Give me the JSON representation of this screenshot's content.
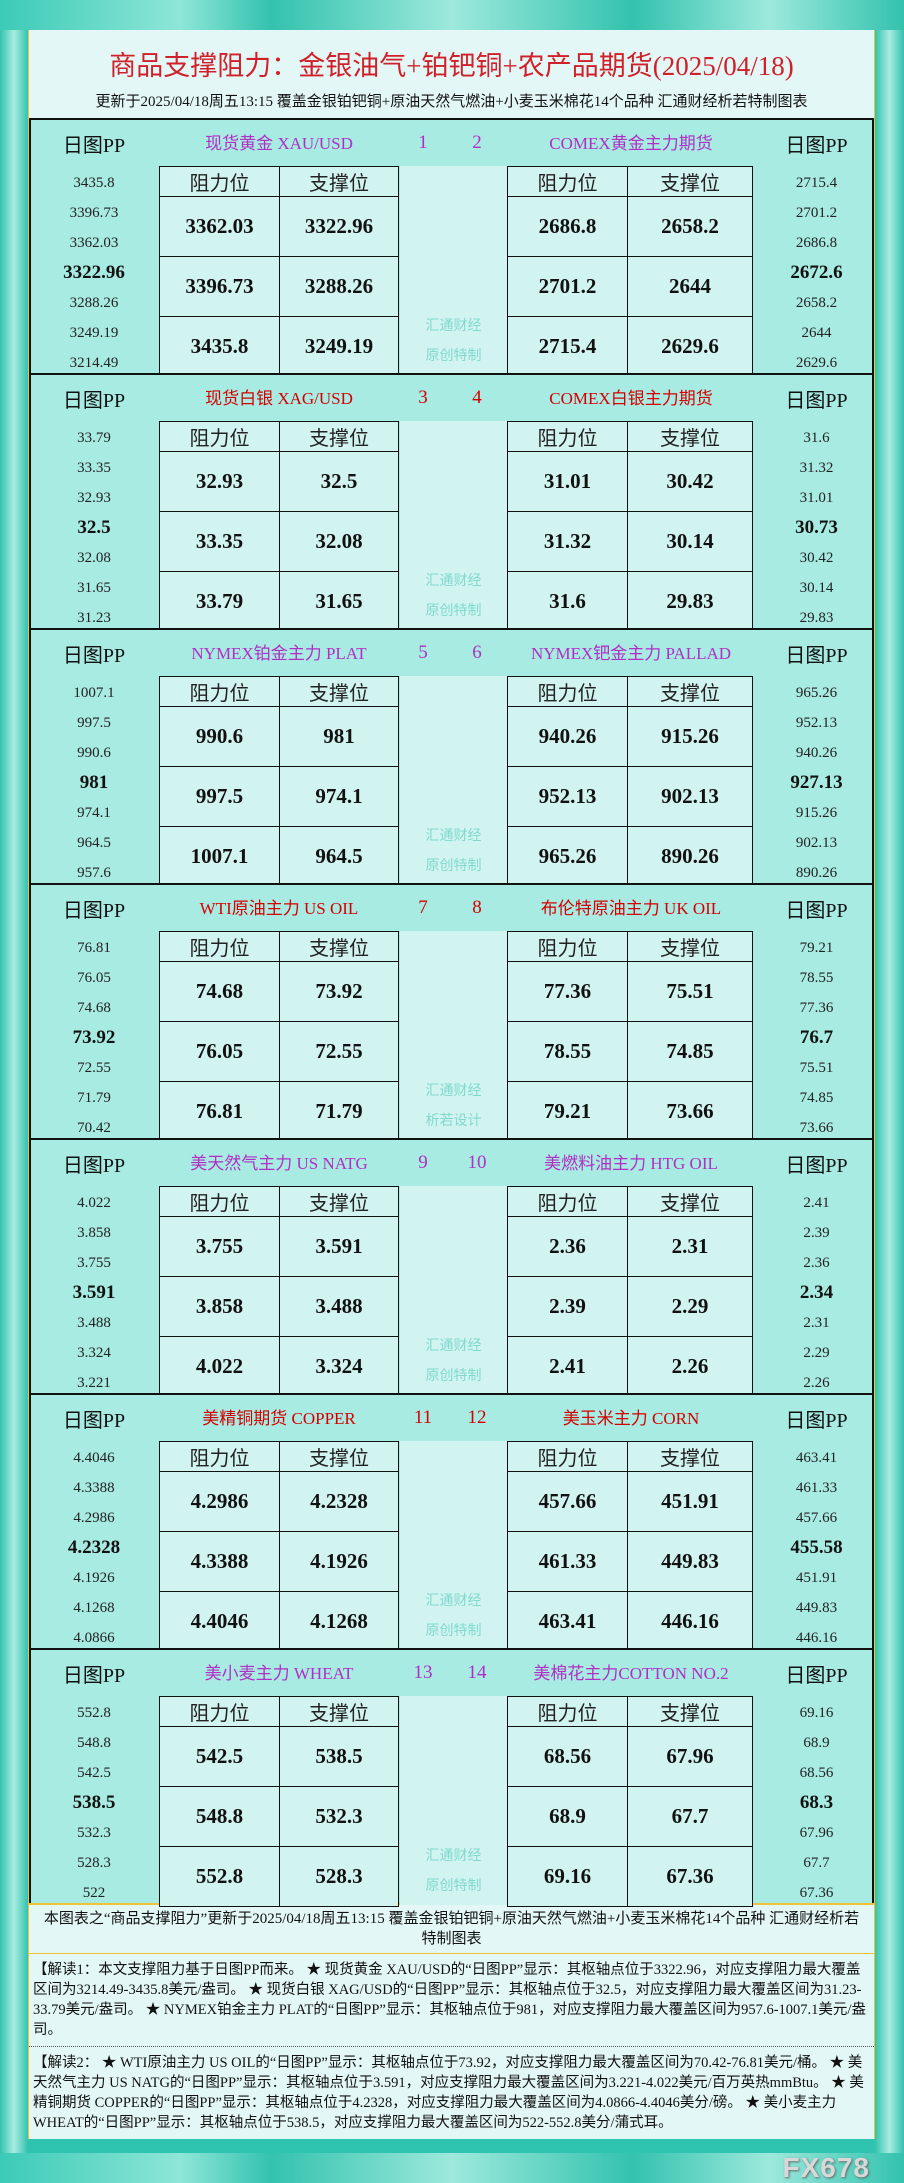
{
  "header": {
    "title": "商品支撑阻力：金银油气+铂钯铜+农产品期货(2025/04/18)",
    "subtitle": "更新于2025/04/18周五13:15 覆盖金银铂钯铜+原油天然气燃油+小麦玉米棉花14个品种 汇通财经析若特制图表"
  },
  "labels": {
    "pp": "日图PP",
    "resistance": "阻力位",
    "support": "支撑位"
  },
  "colors": {
    "purple": "#b02fc4",
    "red": "#d40000"
  },
  "blocks": [
    {
      "color": "purple",
      "wm1": "汇通财经",
      "wm2": "原创特制",
      "left": {
        "num": "1",
        "name": "现货黄金 XAU/USD",
        "pp": [
          "3435.8",
          "3396.73",
          "3362.03",
          "3322.96",
          "3288.26",
          "3249.19",
          "3214.49"
        ],
        "res": [
          "3362.03",
          "3396.73",
          "3435.8"
        ],
        "sup": [
          "3322.96",
          "3288.26",
          "3249.19"
        ]
      },
      "right": {
        "num": "2",
        "name": "COMEX黄金主力期货",
        "pp": [
          "2715.4",
          "2701.2",
          "2686.8",
          "2672.6",
          "2658.2",
          "2644",
          "2629.6"
        ],
        "res": [
          "2686.8",
          "2701.2",
          "2715.4"
        ],
        "sup": [
          "2658.2",
          "2644",
          "2629.6"
        ]
      }
    },
    {
      "color": "red",
      "wm1": "汇通财经",
      "wm2": "原创特制",
      "left": {
        "num": "3",
        "name": "现货白银 XAG/USD",
        "pp": [
          "33.79",
          "33.35",
          "32.93",
          "32.5",
          "32.08",
          "31.65",
          "31.23"
        ],
        "res": [
          "32.93",
          "33.35",
          "33.79"
        ],
        "sup": [
          "32.5",
          "32.08",
          "31.65"
        ]
      },
      "right": {
        "num": "4",
        "name": "COMEX白银主力期货",
        "pp": [
          "31.6",
          "31.32",
          "31.01",
          "30.73",
          "30.42",
          "30.14",
          "29.83"
        ],
        "res": [
          "31.01",
          "31.32",
          "31.6"
        ],
        "sup": [
          "30.42",
          "30.14",
          "29.83"
        ]
      }
    },
    {
      "color": "purple",
      "wm1": "汇通财经",
      "wm2": "原创特制",
      "left": {
        "num": "5",
        "name": "NYMEX铂金主力 PLAT",
        "pp": [
          "1007.1",
          "997.5",
          "990.6",
          "981",
          "974.1",
          "964.5",
          "957.6"
        ],
        "res": [
          "990.6",
          "997.5",
          "1007.1"
        ],
        "sup": [
          "981",
          "974.1",
          "964.5"
        ]
      },
      "right": {
        "num": "6",
        "name": "NYMEX钯金主力 PALLAD",
        "pp": [
          "965.26",
          "952.13",
          "940.26",
          "927.13",
          "915.26",
          "902.13",
          "890.26"
        ],
        "res": [
          "940.26",
          "952.13",
          "965.26"
        ],
        "sup": [
          "915.26",
          "902.13",
          "890.26"
        ]
      }
    },
    {
      "color": "red",
      "wm1": "汇通财经",
      "wm2": "析若设计",
      "left": {
        "num": "7",
        "name": "WTI原油主力 US OIL",
        "pp": [
          "76.81",
          "76.05",
          "74.68",
          "73.92",
          "72.55",
          "71.79",
          "70.42"
        ],
        "res": [
          "74.68",
          "76.05",
          "76.81"
        ],
        "sup": [
          "73.92",
          "72.55",
          "71.79"
        ]
      },
      "right": {
        "num": "8",
        "name": "布伦特原油主力 UK OIL",
        "pp": [
          "79.21",
          "78.55",
          "77.36",
          "76.7",
          "75.51",
          "74.85",
          "73.66"
        ],
        "res": [
          "77.36",
          "78.55",
          "79.21"
        ],
        "sup": [
          "75.51",
          "74.85",
          "73.66"
        ]
      }
    },
    {
      "color": "purple",
      "wm1": "汇通财经",
      "wm2": "原创特制",
      "left": {
        "num": "9",
        "name": "美天然气主力 US NATG",
        "pp": [
          "4.022",
          "3.858",
          "3.755",
          "3.591",
          "3.488",
          "3.324",
          "3.221"
        ],
        "res": [
          "3.755",
          "3.858",
          "4.022"
        ],
        "sup": [
          "3.591",
          "3.488",
          "3.324"
        ]
      },
      "right": {
        "num": "10",
        "name": "美燃料油主力 HTG OIL",
        "pp": [
          "2.41",
          "2.39",
          "2.36",
          "2.34",
          "2.31",
          "2.29",
          "2.26"
        ],
        "res": [
          "2.36",
          "2.39",
          "2.41"
        ],
        "sup": [
          "2.31",
          "2.29",
          "2.26"
        ]
      }
    },
    {
      "color": "red",
      "wm1": "汇通财经",
      "wm2": "原创特制",
      "left": {
        "num": "11",
        "name": "美精铜期货 COPPER",
        "pp": [
          "4.4046",
          "4.3388",
          "4.2986",
          "4.2328",
          "4.1926",
          "4.1268",
          "4.0866"
        ],
        "res": [
          "4.2986",
          "4.3388",
          "4.4046"
        ],
        "sup": [
          "4.2328",
          "4.1926",
          "4.1268"
        ]
      },
      "right": {
        "num": "12",
        "name": "美玉米主力 CORN",
        "pp": [
          "463.41",
          "461.33",
          "457.66",
          "455.58",
          "451.91",
          "449.83",
          "446.16"
        ],
        "res": [
          "457.66",
          "461.33",
          "463.41"
        ],
        "sup": [
          "451.91",
          "449.83",
          "446.16"
        ]
      }
    },
    {
      "color": "purple",
      "wm1": "汇通财经",
      "wm2": "原创特制",
      "left": {
        "num": "13",
        "name": "美小麦主力 WHEAT",
        "pp": [
          "552.8",
          "548.8",
          "542.5",
          "538.5",
          "532.3",
          "528.3",
          "522"
        ],
        "res": [
          "542.5",
          "548.8",
          "552.8"
        ],
        "sup": [
          "538.5",
          "532.3",
          "528.3"
        ]
      },
      "right": {
        "num": "14",
        "name": "美棉花主力COTTON NO.2",
        "pp": [
          "69.16",
          "68.9",
          "68.56",
          "68.3",
          "67.96",
          "67.7",
          "67.36"
        ],
        "res": [
          "68.56",
          "68.9",
          "69.16"
        ],
        "sup": [
          "67.96",
          "67.7",
          "67.36"
        ]
      }
    }
  ],
  "footer": {
    "note": "本图表之“商品支撑阻力”更新于2025/04/18周五13:15 覆盖金银铂钯铜+原油天然气燃油+小麦玉米棉花14个品种 汇通财经析若特制图表",
    "explain1": "【解读1：本文支撑阻力基于日图PP而来。 ★ 现货黄金 XAU/USD的“日图PP”显示：其枢轴点位于3322.96，对应支撑阻力最大覆盖区间为3214.49-3435.8美元/盎司。 ★ 现货白银 XAG/USD的“日图PP”显示：其枢轴点位于32.5，对应支撑阻力最大覆盖区间为31.23-33.79美元/盎司。 ★ NYMEX铂金主力 PLAT的“日图PP”显示：其枢轴点位于981，对应支撑阻力最大覆盖区间为957.6-1007.1美元/盎司。",
    "explain2": "【解读2： ★ WTI原油主力 US OIL的“日图PP”显示：其枢轴点位于73.92，对应支撑阻力最大覆盖区间为70.42-76.81美元/桶。 ★ 美天然气主力 US NATG的“日图PP”显示：其枢轴点位于3.591，对应支撑阻力最大覆盖区间为3.221-4.022美元/百万英热mmBtu。 ★ 美精铜期货 COPPER的“日图PP”显示：其枢轴点位于4.2328，对应支撑阻力最大覆盖区间为4.0866-4.4046美分/磅。 ★ 美小麦主力 WHEAT的“日图PP”显示：其枢轴点位于538.5，对应支撑阻力最大覆盖区间为522-552.8美分/蒲式耳。",
    "logo": "FX678"
  }
}
